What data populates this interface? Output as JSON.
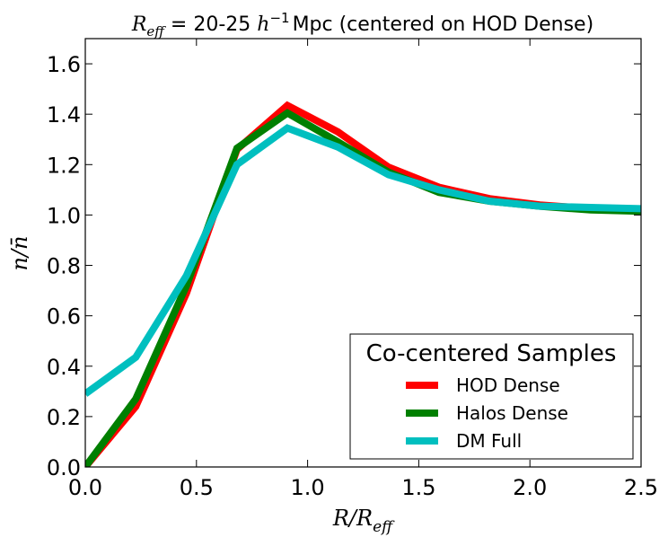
{
  "chart_data": {
    "type": "line",
    "title": "R_eff = 20-25 h^-1 Mpc (centered on HOD Dense)",
    "title_parts": {
      "var_main": "R",
      "var_sub": "eff",
      "eq_range": " = 20-25 ",
      "h": "h",
      "h_sup": "−1",
      "rest": "Mpc (centered on HOD Dense)"
    },
    "xlabel": {
      "main": "R/R",
      "sub": "eff"
    },
    "ylabel": "n/n̄",
    "xlim": [
      0.0,
      2.5
    ],
    "ylim": [
      0.0,
      1.7
    ],
    "xticks": [
      0.0,
      0.5,
      1.0,
      1.5,
      2.0,
      2.5
    ],
    "xtick_labels": [
      "0.0",
      "0.5",
      "1.0",
      "1.5",
      "2.0",
      "2.5"
    ],
    "yticks": [
      0.0,
      0.2,
      0.4,
      0.6,
      0.8,
      1.0,
      1.2,
      1.4,
      1.6
    ],
    "ytick_labels": [
      "0.0",
      "0.2",
      "0.4",
      "0.6",
      "0.8",
      "1.0",
      "1.2",
      "1.4",
      "1.6"
    ],
    "grid": false,
    "legend": {
      "title": "Co-centered Samples",
      "position": "lower-right"
    },
    "series": [
      {
        "name": "HOD Dense",
        "color": "#ff0000",
        "x": [
          0.0,
          0.227,
          0.455,
          0.682,
          0.909,
          1.136,
          1.364,
          1.591,
          1.818,
          2.045,
          2.273,
          2.5
        ],
        "y": [
          0.0,
          0.24,
          0.69,
          1.26,
          1.435,
          1.33,
          1.19,
          1.11,
          1.065,
          1.04,
          1.025,
          1.02
        ]
      },
      {
        "name": "Halos Dense",
        "color": "#007f00",
        "x": [
          0.0,
          0.227,
          0.455,
          0.682,
          0.909,
          1.136,
          1.364,
          1.591,
          1.818,
          2.045,
          2.273,
          2.5
        ],
        "y": [
          0.0,
          0.27,
          0.72,
          1.265,
          1.405,
          1.29,
          1.17,
          1.09,
          1.055,
          1.035,
          1.02,
          1.015
        ]
      },
      {
        "name": "DM Full",
        "color": "#00bfbf",
        "x": [
          0.0,
          0.227,
          0.455,
          0.682,
          0.909,
          1.136,
          1.364,
          1.591,
          1.818,
          2.045,
          2.273,
          2.5
        ],
        "y": [
          0.29,
          0.435,
          0.76,
          1.2,
          1.345,
          1.27,
          1.16,
          1.1,
          1.055,
          1.035,
          1.03,
          1.025
        ]
      }
    ]
  }
}
